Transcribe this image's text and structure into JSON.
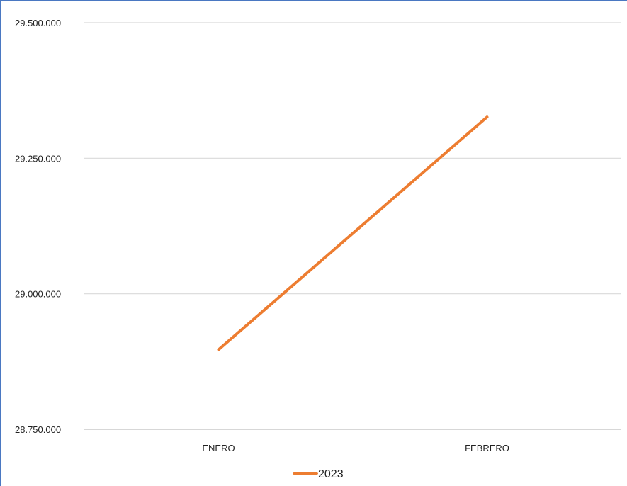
{
  "chart_data": {
    "type": "line",
    "categories": [
      "ENERO",
      "FEBRERO"
    ],
    "series": [
      {
        "name": "2023",
        "values": [
          28897000,
          29326000
        ],
        "color": "#ED7D31"
      }
    ],
    "ylim": [
      28750000,
      29500000
    ],
    "yticks": [
      29500000,
      29250000,
      29000000,
      28750000
    ],
    "ytick_labels": [
      "29.500.000",
      "29.250.000",
      "29.000.000",
      "28.750.000"
    ],
    "grid": true,
    "legend_position": "bottom",
    "colors": {
      "grid": "#d9d9d9",
      "axis": "#bfbfbf",
      "frame": "#4a78c2"
    }
  }
}
